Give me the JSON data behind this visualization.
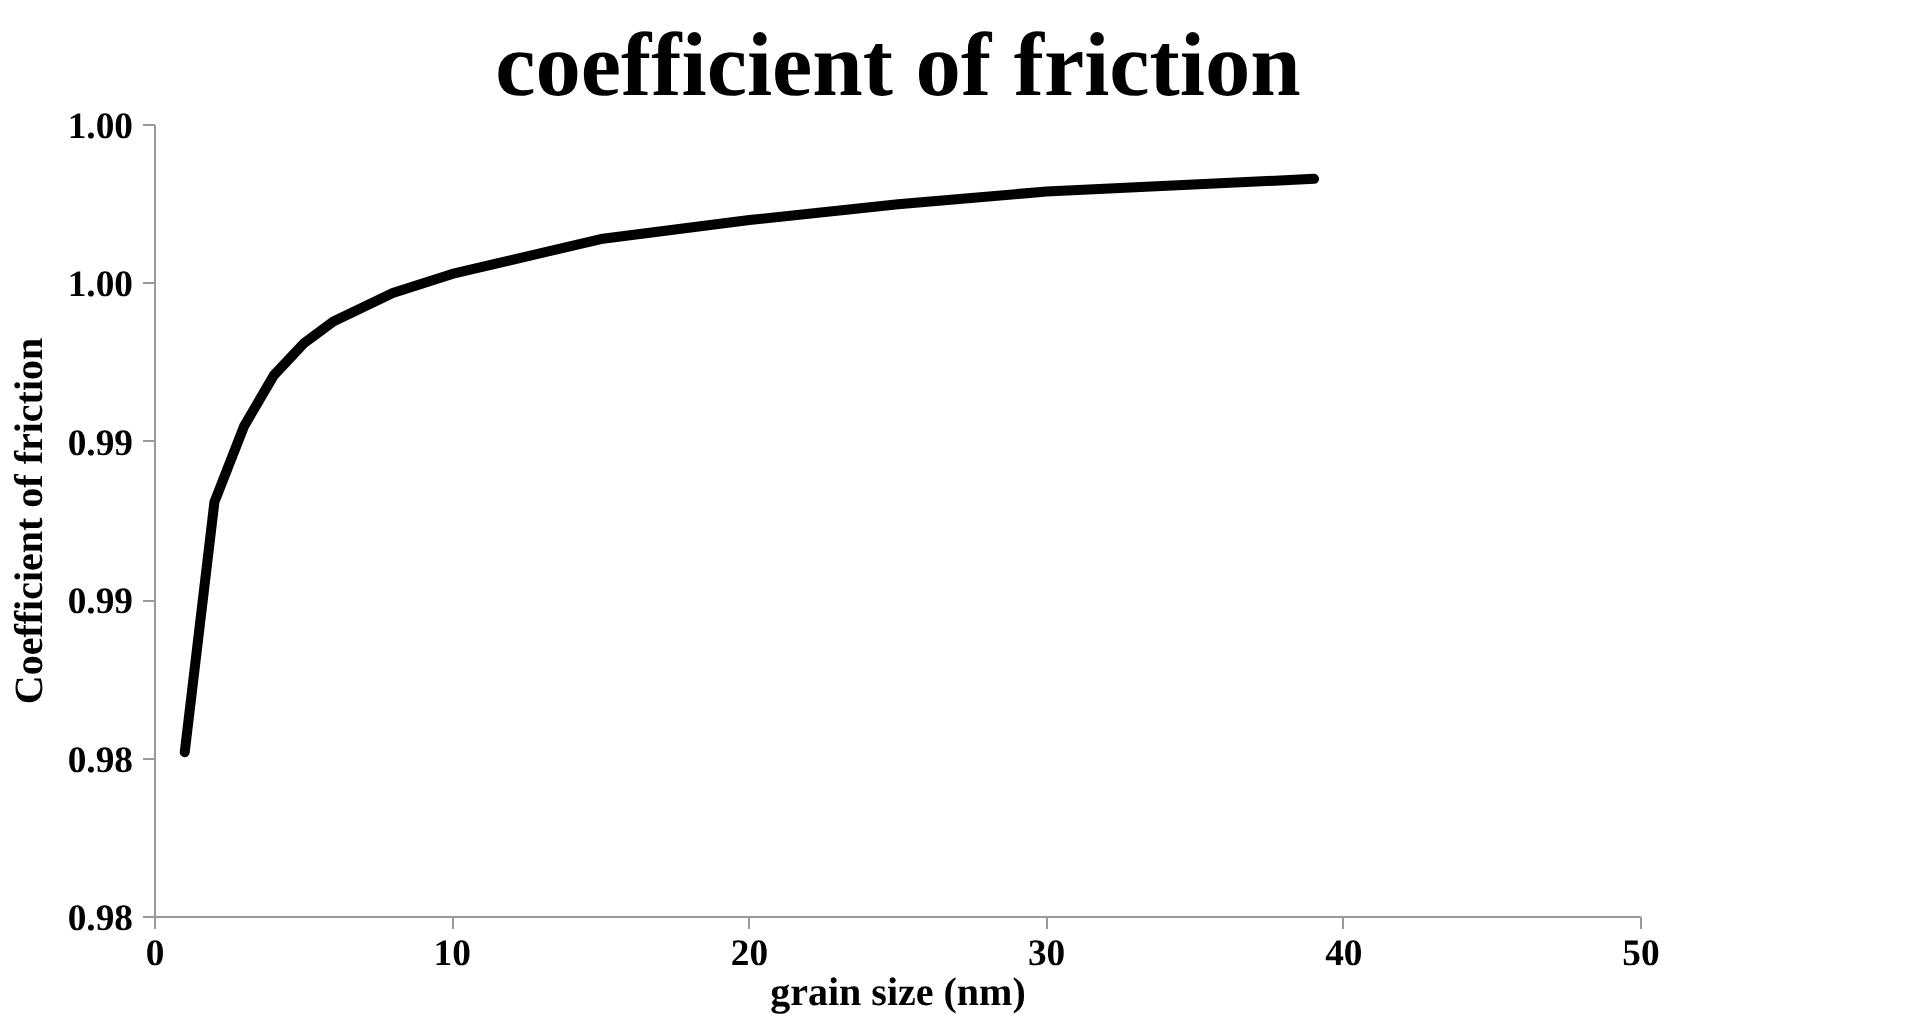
{
  "chart_data": {
    "type": "line",
    "title": "coefficient of friction",
    "xlabel": "grain size (nm)",
    "ylabel": "Coefficient of friction",
    "x": [
      1,
      2,
      3,
      4,
      5,
      6,
      8,
      10,
      15,
      20,
      25,
      30,
      39
    ],
    "series": [
      {
        "color": "#000000",
        "values": [
          0.9802,
          0.9881,
          0.9905,
          0.9921,
          0.9931,
          0.9938,
          0.9947,
          0.9953,
          0.9964,
          0.997,
          0.9975,
          0.9979,
          0.9983
        ]
      }
    ],
    "xlim": [
      0,
      50
    ],
    "xticks": [
      0,
      10,
      20,
      30,
      40,
      50
    ],
    "ylim": [
      0.975,
      1.0
    ],
    "yticks": [
      {
        "value": 0.975,
        "label": "0.98"
      },
      {
        "value": 0.98,
        "label": "0.98"
      },
      {
        "value": 0.985,
        "label": "0.99"
      },
      {
        "value": 0.99,
        "label": "0.99"
      },
      {
        "value": 0.995,
        "label": "1.00"
      },
      {
        "value": 1.0,
        "label": "1.00"
      }
    ],
    "grid": false,
    "marker": "none",
    "line_style": "solid"
  }
}
